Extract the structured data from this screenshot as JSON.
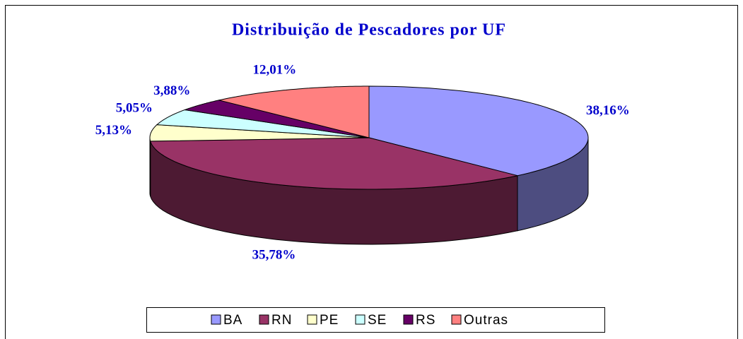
{
  "chart_data": {
    "type": "pie",
    "title": "Distribuição de Pescadores por UF",
    "categories": [
      "BA",
      "RN",
      "PE",
      "SE",
      "RS",
      "Outras"
    ],
    "values": [
      38.16,
      35.78,
      5.13,
      5.05,
      3.88,
      12.01
    ],
    "value_labels": [
      "38,16%",
      "35,78%",
      "5,13%",
      "5,05%",
      "3,88%",
      "12,01%"
    ],
    "colors": [
      "#9999ff",
      "#993366",
      "#ffffcc",
      "#ccffff",
      "#660066",
      "#ff8080"
    ],
    "legend": "bottom"
  }
}
